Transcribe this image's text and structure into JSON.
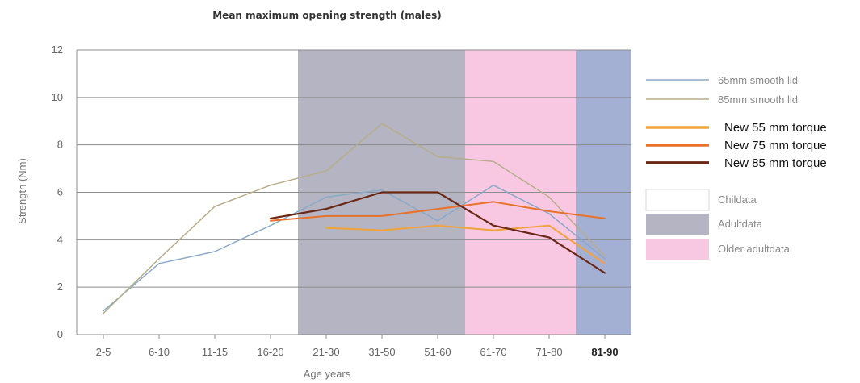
{
  "chart_data": {
    "type": "line",
    "title": "Mean maximum opening strength (males)",
    "xlabel": "Age years",
    "ylabel": "Strength (Nm)",
    "ylim": [
      0,
      12
    ],
    "yticks": [
      "0",
      "2",
      "4",
      "6",
      "8",
      "10",
      "12"
    ],
    "categories": [
      "2-5",
      "6-10",
      "11-15",
      "16-20",
      "21-30",
      "31-50",
      "51-60",
      "61-70",
      "71-80",
      "81-90"
    ],
    "bold_category": "81-90",
    "grid": true,
    "legend_position": "right",
    "regions": [
      {
        "name": "Childata",
        "from": "2-5",
        "to": "16-20",
        "color": "#ffffff"
      },
      {
        "name": "Adultdata",
        "from": "21-30",
        "to": "51-60",
        "color": "#b4b4c2"
      },
      {
        "name": "Older adultdata",
        "from": "61-70",
        "to": "71-80",
        "color": "#f8c8e2"
      },
      {
        "name": "",
        "from": "81-90",
        "to": "81-90",
        "color": "#a4afd4"
      }
    ],
    "series": [
      {
        "name": "65mm smooth lid",
        "color": "#8aa9c8",
        "width": 1.5,
        "values": [
          1.0,
          3.0,
          3.5,
          4.6,
          5.8,
          6.1,
          4.8,
          6.3,
          5.1,
          3.2
        ]
      },
      {
        "name": "85mm smooth lid",
        "color": "#b7ad8a",
        "width": 1.5,
        "values": [
          0.9,
          3.2,
          5.4,
          6.3,
          6.9,
          8.9,
          7.5,
          7.3,
          5.8,
          3.3
        ]
      },
      {
        "name": "New 55 mm torque",
        "color": "#f2a33a",
        "width": 2,
        "values": [
          null,
          null,
          null,
          null,
          4.5,
          4.4,
          4.6,
          4.4,
          4.6,
          3.0
        ]
      },
      {
        "name": "New 75 mm torque",
        "color": "#e8722a",
        "width": 2,
        "values": [
          null,
          null,
          null,
          4.8,
          5.0,
          5.0,
          5.3,
          5.6,
          5.2,
          4.9
        ]
      },
      {
        "name": "New 85 mm torque",
        "color": "#6a2716",
        "width": 2.2,
        "values": [
          null,
          null,
          null,
          4.9,
          5.3,
          6.0,
          6.0,
          4.6,
          4.1,
          2.6
        ]
      }
    ]
  }
}
